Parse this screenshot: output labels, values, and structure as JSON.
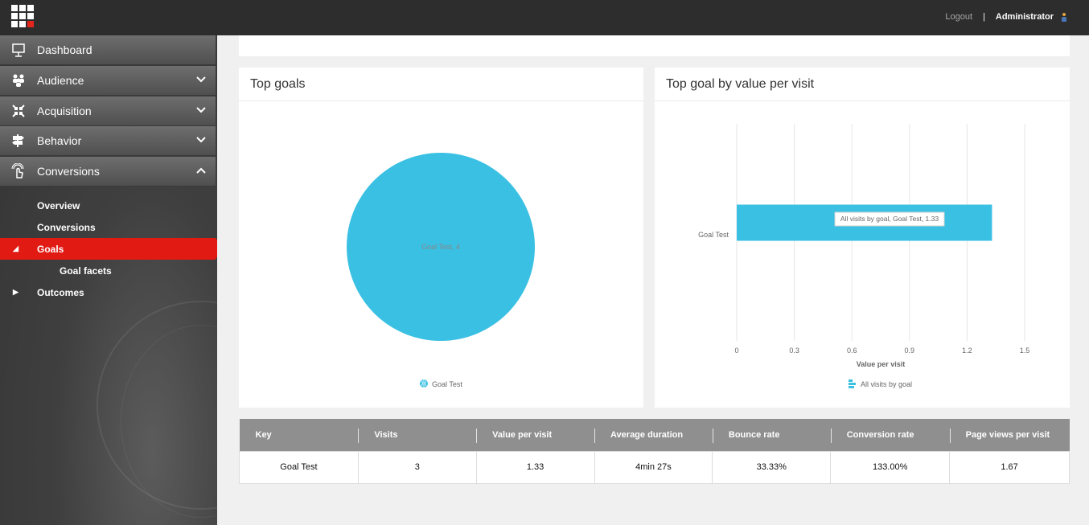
{
  "header": {
    "logout": "Logout",
    "separator": "|",
    "user": "Administrator"
  },
  "sidebar": {
    "items": [
      {
        "label": "Dashboard",
        "icon": "presentation-board-icon",
        "chevron": null
      },
      {
        "label": "Audience",
        "icon": "people-group-icon",
        "chevron": "chevron-down-icon"
      },
      {
        "label": "Acquisition",
        "icon": "arrows-inward-icon",
        "chevron": "chevron-down-icon"
      },
      {
        "label": "Behavior",
        "icon": "signpost-icon",
        "chevron": "chevron-down-icon"
      },
      {
        "label": "Conversions",
        "icon": "hand-pointer-icon",
        "chevron": "chevron-up-icon"
      }
    ],
    "subitems": [
      {
        "label": "Overview"
      },
      {
        "label": "Conversions"
      },
      {
        "label": "Goals",
        "active": true
      },
      {
        "label": "Goal facets"
      },
      {
        "label": "Outcomes"
      }
    ]
  },
  "top_goals": {
    "title": "Top goals",
    "slice_label": "Goal Test, 4",
    "legend": "Goal Test"
  },
  "top_goal_value": {
    "title": "Top goal by value per visit",
    "category": "Goal Test",
    "tooltip": "All visits by goal, Goal Test, 1.33",
    "xlabel": "Value per visit",
    "legend": "All visits by goal"
  },
  "chart_data": [
    {
      "type": "pie",
      "title": "Top goals",
      "categories": [
        "Goal Test"
      ],
      "values": [
        4
      ],
      "legend": [
        "Goal Test"
      ],
      "colors": [
        "#3ac0e3"
      ]
    },
    {
      "type": "bar",
      "orientation": "horizontal",
      "title": "Top goal by value per visit",
      "categories": [
        "Goal Test"
      ],
      "series": [
        {
          "name": "All visits by goal",
          "values": [
            1.33
          ]
        }
      ],
      "xlabel": "Value per visit",
      "ylabel": "",
      "xlim": [
        0,
        1.5
      ],
      "xticks": [
        "0",
        "0.3",
        "0.6",
        "0.9",
        "1.2",
        "1.5"
      ],
      "grid": true,
      "legend_position": "bottom",
      "colors": [
        "#3ac0e3"
      ]
    }
  ],
  "table": {
    "headers": [
      "Key",
      "Visits",
      "Value per visit",
      "Average duration",
      "Bounce rate",
      "Conversion rate",
      "Page views per visit"
    ],
    "rows": [
      [
        "Goal Test",
        "3",
        "1.33",
        "4min 27s",
        "33.33%",
        "133.00%",
        "1.67"
      ]
    ]
  },
  "colors": {
    "accent": "#e11b14",
    "chart": "#3ac0e3",
    "topbar": "#2d2d2d"
  }
}
